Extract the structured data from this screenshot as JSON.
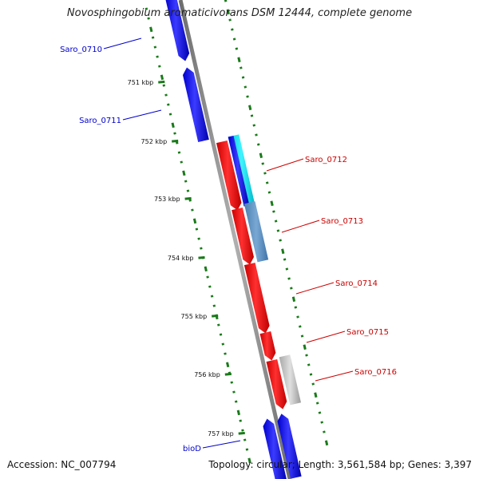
{
  "title": "Novosphingobium aromaticivorans DSM 12444, complete genome",
  "accession_text": "Accession: NC_007794",
  "summary_text": "Topology: circular; Length: 3,561,584 bp; Genes: 3,397",
  "scale_ticks": [
    "751 kbp",
    "752 kbp",
    "753 kbp",
    "754 kbp",
    "755 kbp",
    "756 kbp",
    "757 kbp"
  ],
  "colors": {
    "forward_gene": "#0000ee",
    "reverse_gene": "#ee0000",
    "highlight_cyan": "#00e5ee",
    "highlight_steelblue": "#5b8fc0",
    "highlight_gray": "#b8b8b8",
    "backbone": "#888888",
    "gc_marks": "#1a7a1a",
    "label_blue": "#0000cc",
    "label_red": "#cc0000"
  },
  "genes": [
    {
      "label": "Saro_0710",
      "strand": "forward",
      "color": "blue"
    },
    {
      "label": "Saro_0711",
      "strand": "forward",
      "color": "blue"
    },
    {
      "label": "Saro_0712",
      "strand": "reverse",
      "color": "red"
    },
    {
      "label": "Saro_0713",
      "strand": "reverse",
      "color": "red"
    },
    {
      "label": "Saro_0714",
      "strand": "reverse",
      "color": "red"
    },
    {
      "label": "Saro_0715",
      "strand": "reverse",
      "color": "red"
    },
    {
      "label": "Saro_0716",
      "strand": "reverse",
      "color": "red"
    },
    {
      "label": "bioD",
      "strand": "forward",
      "color": "blue"
    }
  ]
}
